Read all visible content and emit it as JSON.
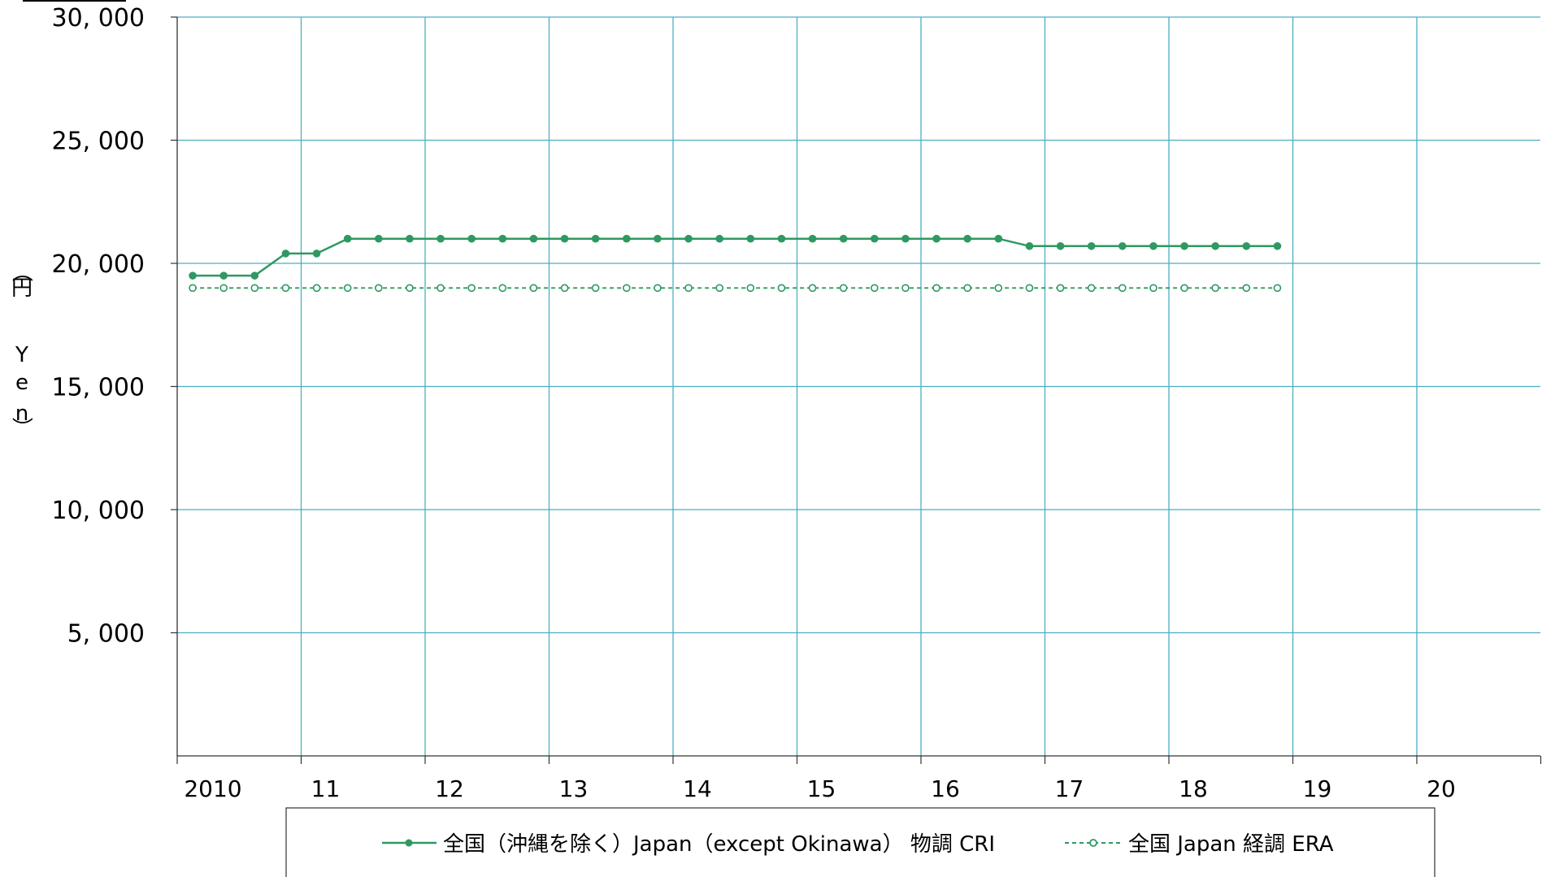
{
  "chart_data": {
    "type": "line",
    "ylabel": [
      "（",
      "円",
      "Y",
      "e",
      "n",
      "）"
    ],
    "ylim": [
      0,
      30000
    ],
    "y_ticks": [
      "5, 000",
      "10, 000",
      "15, 000",
      "20, 000",
      "25, 000",
      "30, 000"
    ],
    "y_tick_values": [
      5000,
      10000,
      15000,
      20000,
      25000,
      30000
    ],
    "x_labels": [
      "2010",
      "11",
      "12",
      "13",
      "14",
      "15",
      "16",
      "17",
      "18",
      "19",
      "20"
    ],
    "xlim": [
      2010,
      2021
    ],
    "grid": true,
    "legend_position": "bottom",
    "series": [
      {
        "name": "全国（沖縄を除く）Japan（except Okinawa） 物調 CRI",
        "color": "#2e9960",
        "style": "solid",
        "marker": "filled-circle",
        "x": [
          2010.125,
          2010.375,
          2010.625,
          2010.875,
          2011.125,
          2011.375,
          2011.625,
          2011.875,
          2012.125,
          2012.375,
          2012.625,
          2012.875,
          2013.125,
          2013.375,
          2013.625,
          2013.875,
          2014.125,
          2014.375,
          2014.625,
          2014.875,
          2015.125,
          2015.375,
          2015.625,
          2015.875,
          2016.125,
          2016.375,
          2016.625,
          2016.875,
          2017.125,
          2017.375,
          2017.625,
          2017.875,
          2018.125,
          2018.375,
          2018.625,
          2018.875
        ],
        "values": [
          19500,
          19500,
          19500,
          20400,
          20400,
          21000,
          21000,
          21000,
          21000,
          21000,
          21000,
          21000,
          21000,
          21000,
          21000,
          21000,
          21000,
          21000,
          21000,
          21000,
          21000,
          21000,
          21000,
          21000,
          21000,
          21000,
          21000,
          20700,
          20700,
          20700,
          20700,
          20700,
          20700,
          20700,
          20700,
          20700
        ]
      },
      {
        "name": "全国 Japan 経調 ERA",
        "color": "#2e9960",
        "style": "dashed",
        "marker": "hollow-circle",
        "x": [
          2010.125,
          2010.375,
          2010.625,
          2010.875,
          2011.125,
          2011.375,
          2011.625,
          2011.875,
          2012.125,
          2012.375,
          2012.625,
          2012.875,
          2013.125,
          2013.375,
          2013.625,
          2013.875,
          2014.125,
          2014.375,
          2014.625,
          2014.875,
          2015.125,
          2015.375,
          2015.625,
          2015.875,
          2016.125,
          2016.375,
          2016.625,
          2016.875,
          2017.125,
          2017.375,
          2017.625,
          2017.875,
          2018.125,
          2018.375,
          2018.625,
          2018.875
        ],
        "values": [
          19000,
          19000,
          19000,
          19000,
          19000,
          19000,
          19000,
          19000,
          19000,
          19000,
          19000,
          19000,
          19000,
          19000,
          19000,
          19000,
          19000,
          19000,
          19000,
          19000,
          19000,
          19000,
          19000,
          19000,
          19000,
          19000,
          19000,
          19000,
          19000,
          19000,
          19000,
          19000,
          19000,
          19000,
          19000,
          19000
        ]
      }
    ]
  },
  "colors": {
    "grid": "#4bafc2",
    "axis": "#333333",
    "series": "#2e9960"
  }
}
